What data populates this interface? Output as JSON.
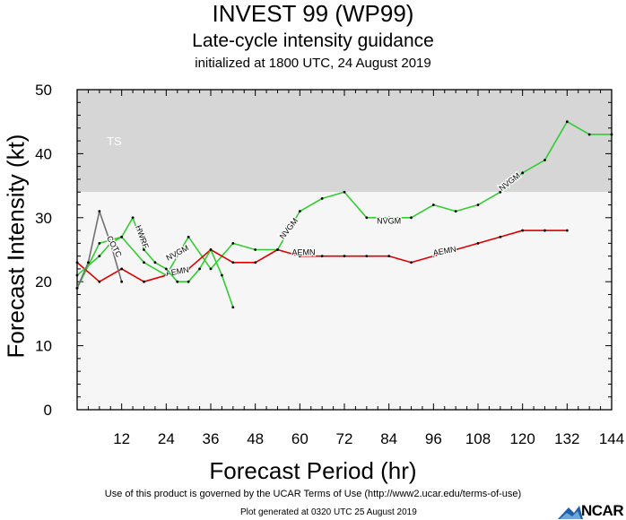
{
  "header": {
    "title": "INVEST 99 (WP99)",
    "subtitle": "Late-cycle intensity guidance",
    "initialized": "initialized at 1800 UTC, 24 August 2019"
  },
  "footer": {
    "terms": "Use of this product is governed by the UCAR Terms of Use (http://www2.ucar.edu/terms-of-use)",
    "generated": "Plot generated at 0320 UTC   25 August 2019",
    "logo": "NCAR"
  },
  "chart_data": {
    "type": "line",
    "xlabel": "Forecast Period (hr)",
    "ylabel": "Forecast Intensity (kt)",
    "xlim": [
      0,
      144
    ],
    "ylim": [
      0,
      50
    ],
    "xticks": [
      12,
      24,
      36,
      48,
      60,
      72,
      84,
      96,
      108,
      120,
      132,
      144
    ],
    "yticks": [
      0,
      10,
      20,
      30,
      40,
      50
    ],
    "bands": [
      {
        "label": "TS",
        "from": 34,
        "to": 50,
        "color": "#d6d6d6"
      },
      {
        "label": "",
        "from": 0,
        "to": 34,
        "color": "#f6f6f6"
      }
    ],
    "series": [
      {
        "name": "NVGM",
        "color": "#33cc33",
        "line_label": "NVGM",
        "x": [
          0,
          6,
          12,
          18,
          24,
          30,
          36,
          42,
          48,
          54,
          60,
          66,
          72,
          78,
          84,
          90,
          96,
          102,
          108,
          114,
          120,
          126,
          132,
          138,
          144
        ],
        "y": [
          19,
          26,
          27,
          23,
          21,
          27,
          22,
          26,
          25,
          25,
          31,
          33,
          34,
          30,
          30,
          30,
          32,
          31,
          32,
          34,
          37,
          39,
          45,
          43,
          43
        ],
        "labels_at": [
          {
            "x": 27,
            "y": 24.5,
            "angle": -28
          },
          {
            "x": 57,
            "y": 28.3,
            "angle": -52
          },
          {
            "x": 84,
            "y": 29.5,
            "angle": 0
          },
          {
            "x": 116.5,
            "y": 35.6,
            "angle": -38
          }
        ]
      },
      {
        "name": "AEMN",
        "color": "#dd0000",
        "line_label": "AEMN",
        "x": [
          0,
          6,
          12,
          18,
          24,
          30,
          36,
          42,
          48,
          54,
          60,
          66,
          72,
          78,
          84,
          90,
          96,
          102,
          108,
          114,
          120,
          126,
          132
        ],
        "y": [
          23,
          20,
          22,
          20,
          21,
          22,
          25,
          23,
          23,
          25,
          24,
          24,
          24,
          24,
          24,
          23,
          24,
          25,
          26,
          27,
          28,
          28,
          28
        ],
        "labels_at": [
          {
            "x": 27,
            "y": 21.6,
            "angle": -10
          },
          {
            "x": 61,
            "y": 24.6,
            "angle": 0
          },
          {
            "x": 99,
            "y": 24.8,
            "angle": -10
          }
        ]
      },
      {
        "name": "HWRF",
        "color": "#33cc33",
        "line_label": "HWRF",
        "x": [
          0,
          6,
          9,
          12,
          15,
          18,
          21,
          24,
          27,
          30,
          33,
          36,
          39,
          42
        ],
        "y": [
          21,
          24,
          26,
          27,
          30,
          25,
          23,
          22,
          20,
          20,
          22,
          25,
          21,
          16
        ],
        "labels_at": [
          {
            "x": 17.5,
            "y": 27,
            "angle": 70
          }
        ]
      },
      {
        "name": "COTC",
        "color": "#707070",
        "line_label": "COTC",
        "x": [
          0,
          3,
          6,
          9,
          12
        ],
        "y": [
          19,
          23,
          31,
          26,
          20
        ],
        "labels_at": [
          {
            "x": 10,
            "y": 25.5,
            "angle": 62
          }
        ]
      }
    ],
    "annotations": [
      {
        "text": "TS",
        "x": 8,
        "y": 42,
        "color": "#ffffff"
      }
    ]
  }
}
